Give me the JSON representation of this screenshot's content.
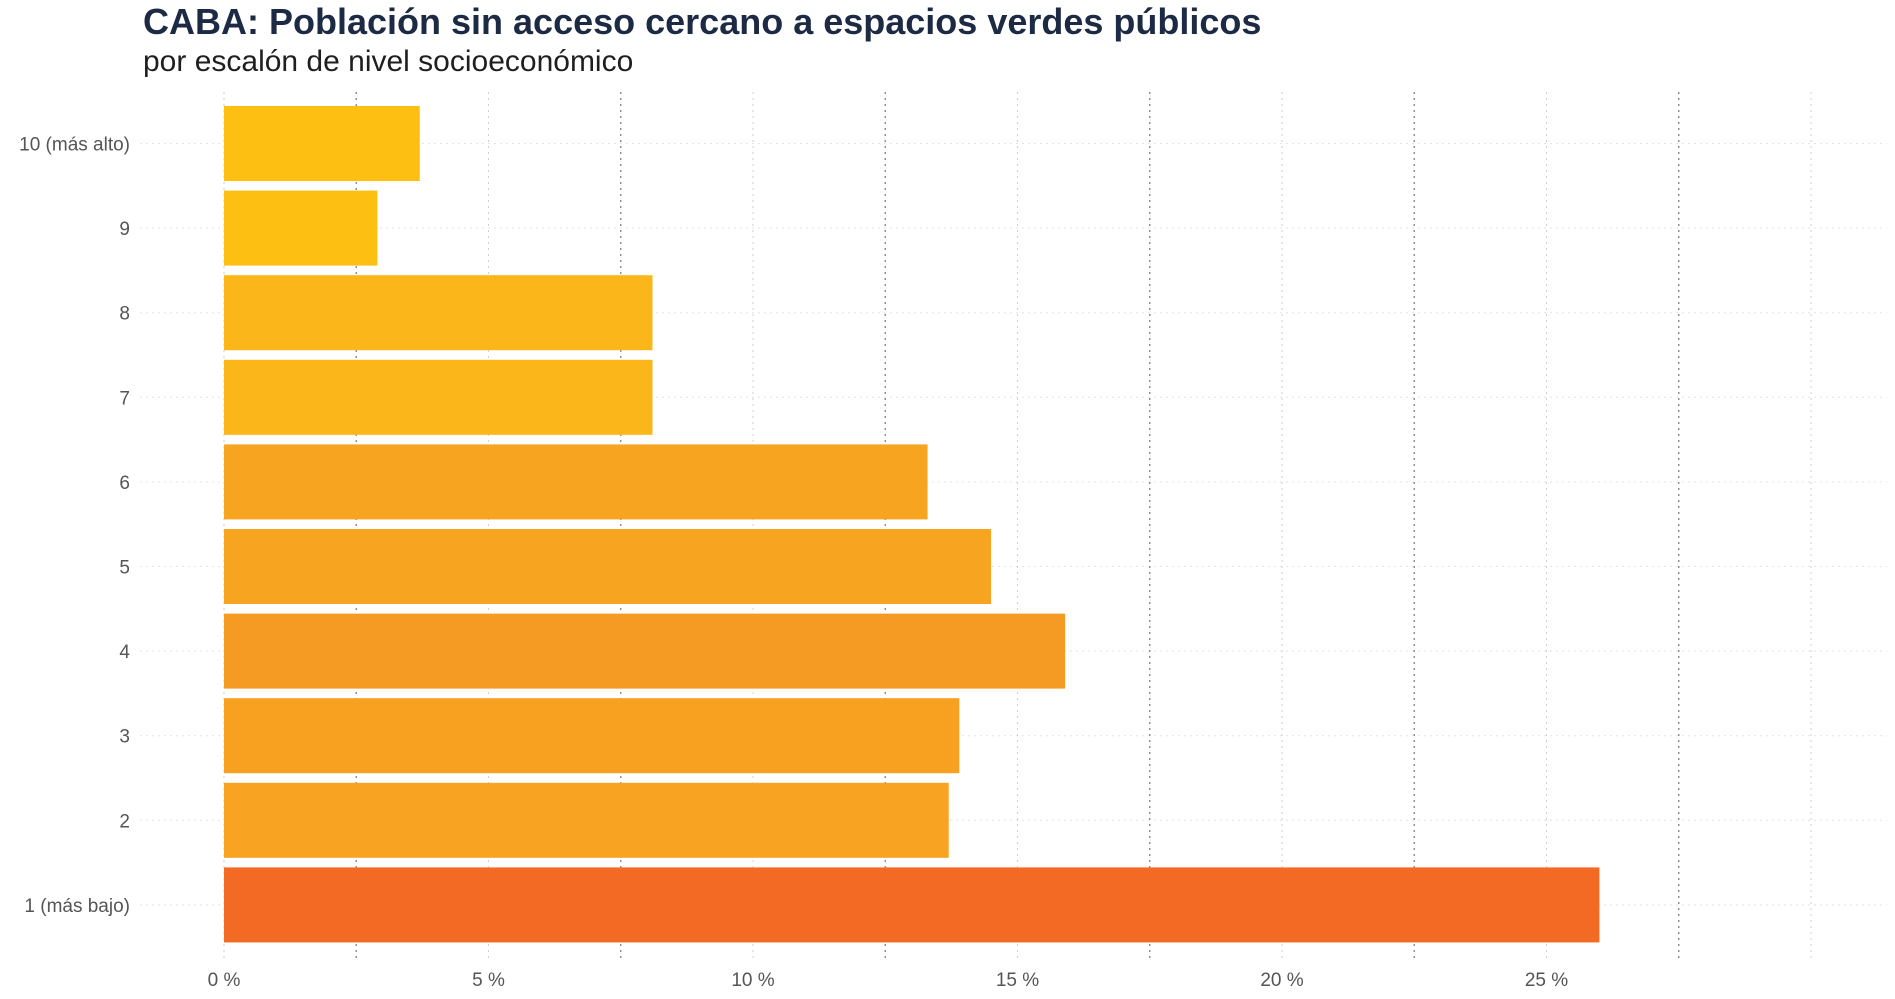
{
  "header": {
    "title": "CABA: Población sin acceso cercano a espacios verdes públicos",
    "subtitle": "por escalón de nivel socioeconómico"
  },
  "chart_data": {
    "type": "bar",
    "orientation": "horizontal",
    "title": "CABA: Población sin acceso cercano a espacios verdes públicos",
    "subtitle": "por escalón de nivel socioeconómico",
    "categories": [
      "10 (más alto)",
      "9",
      "8",
      "7",
      "6",
      "5",
      "4",
      "3",
      "2",
      "1 (más bajo)"
    ],
    "values": [
      3.7,
      2.9,
      8.1,
      8.1,
      13.3,
      14.5,
      15.9,
      13.9,
      13.7,
      26.0
    ],
    "colors": [
      "#fdbf11",
      "#fdbf11",
      "#fbb61a",
      "#fbb61a",
      "#f7a420",
      "#f7a420",
      "#f59a22",
      "#f8a121",
      "#f8a322",
      "#f36a24"
    ],
    "xlim": [
      0,
      30
    ],
    "xticks": [
      0,
      5,
      10,
      15,
      20,
      25
    ],
    "xtick_labels": [
      "0 %",
      "5 %",
      "10 %",
      "15 %",
      "20 %",
      "25 %"
    ],
    "xlabel": "",
    "ylabel": "",
    "grid": true
  }
}
